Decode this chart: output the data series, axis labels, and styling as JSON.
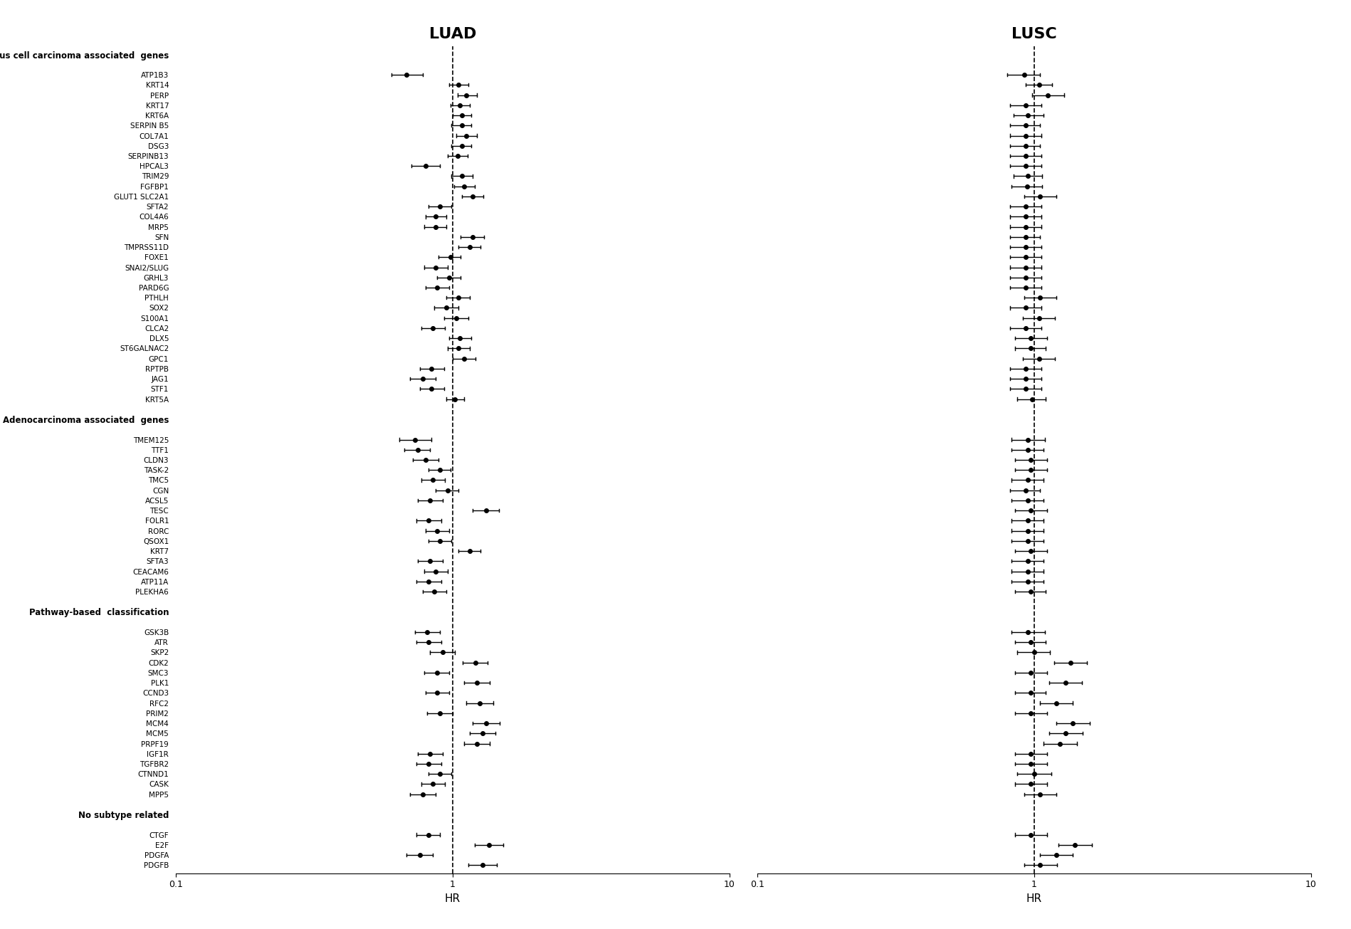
{
  "categories": {
    "Squamous cell carcinoma associated  genes": [
      "ATP1B3",
      "KRT14",
      "PERP",
      "KRT17",
      "KRT6A",
      "SERPIN B5",
      "COL7A1",
      "DSG3",
      "SERPINB13",
      "HPCAL3",
      "TRIM29",
      "FGFBP1",
      "GLUT1 SLC2A1",
      "SFTA2",
      "COL4A6",
      "MRP5",
      "SFN",
      "TMPRSS11D",
      "FOXE1",
      "SNAI2/SLUG",
      "GRHL3",
      "PARD6G",
      "PTHLH",
      "SOX2",
      "S100A1",
      "CLCA2",
      "DLX5",
      "ST6GALNAC2",
      "GPC1",
      "RPTPB",
      "JAG1",
      "STF1",
      "KRT5A"
    ],
    "Adenocarcinoma associated  genes": [
      "TMEM125",
      "TTF1",
      "CLDN3",
      "TASK-2",
      "TMC5",
      "CGN",
      "ACSL5",
      "TESC",
      "FOLR1",
      "RORC",
      "QSOX1",
      "KRT7",
      "SFTA3",
      "CEACAM6",
      "ATP11A",
      "PLEKHA6"
    ],
    "Pathway-based  classification": [
      "GSK3B",
      "ATR",
      "SKP2",
      "CDK2",
      "SMC3",
      "PLK1",
      "CCND3",
      "RFC2",
      "PRIM2",
      "MCM4",
      "MCM5",
      "PRPF19",
      "IGF1R",
      "TGFBR2",
      "CTNND1",
      "CASK",
      "MPP5"
    ],
    "No subtype related": [
      "CTGF",
      "E2F",
      "PDGFA",
      "PDGFB"
    ]
  },
  "luad": {
    "ATP1B3": [
      0.68,
      0.6,
      0.78
    ],
    "KRT14": [
      1.05,
      0.97,
      1.14
    ],
    "PERP": [
      1.12,
      1.04,
      1.22
    ],
    "KRT17": [
      1.06,
      0.98,
      1.15
    ],
    "KRT6A": [
      1.08,
      1.0,
      1.17
    ],
    "SERPIN B5": [
      1.08,
      0.99,
      1.17
    ],
    "COL7A1": [
      1.12,
      1.03,
      1.22
    ],
    "DSG3": [
      1.08,
      0.99,
      1.17
    ],
    "SERPINB13": [
      1.04,
      0.96,
      1.13
    ],
    "HPCAL3": [
      0.8,
      0.71,
      0.9
    ],
    "TRIM29": [
      1.08,
      0.99,
      1.18
    ],
    "FGFBP1": [
      1.1,
      1.01,
      1.2
    ],
    "GLUT1 SLC2A1": [
      1.18,
      1.08,
      1.29
    ],
    "SFTA2": [
      0.9,
      0.82,
      0.99
    ],
    "COL4A6": [
      0.87,
      0.8,
      0.95
    ],
    "MRP5": [
      0.87,
      0.79,
      0.95
    ],
    "SFN": [
      1.18,
      1.07,
      1.3
    ],
    "TMPRSS11D": [
      1.15,
      1.05,
      1.26
    ],
    "FOXE1": [
      0.98,
      0.89,
      1.07
    ],
    "SNAI2/SLUG": [
      0.87,
      0.79,
      0.96
    ],
    "GRHL3": [
      0.97,
      0.88,
      1.07
    ],
    "PARD6G": [
      0.88,
      0.8,
      0.97
    ],
    "PTHLH": [
      1.05,
      0.95,
      1.15
    ],
    "SOX2": [
      0.95,
      0.86,
      1.05
    ],
    "S100A1": [
      1.03,
      0.93,
      1.14
    ],
    "CLCA2": [
      0.85,
      0.77,
      0.94
    ],
    "DLX5": [
      1.06,
      0.97,
      1.17
    ],
    "ST6GALNAC2": [
      1.05,
      0.96,
      1.15
    ],
    "GPC1": [
      1.1,
      1.0,
      1.21
    ],
    "RPTPB": [
      0.84,
      0.76,
      0.93
    ],
    "JAG1": [
      0.78,
      0.7,
      0.87
    ],
    "STF1": [
      0.84,
      0.76,
      0.93
    ],
    "KRT5A": [
      1.02,
      0.95,
      1.1
    ],
    "TMEM125": [
      0.73,
      0.64,
      0.84
    ],
    "TTF1": [
      0.75,
      0.67,
      0.83
    ],
    "CLDN3": [
      0.8,
      0.72,
      0.89
    ],
    "TASK-2": [
      0.9,
      0.82,
      0.98
    ],
    "TMC5": [
      0.85,
      0.77,
      0.94
    ],
    "CGN": [
      0.96,
      0.87,
      1.05
    ],
    "ACSL5": [
      0.83,
      0.75,
      0.92
    ],
    "TESC": [
      1.32,
      1.18,
      1.47
    ],
    "FOLR1": [
      0.82,
      0.74,
      0.91
    ],
    "RORC": [
      0.88,
      0.8,
      0.97
    ],
    "QSOX1": [
      0.9,
      0.82,
      0.99
    ],
    "KRT7": [
      1.15,
      1.05,
      1.26
    ],
    "SFTA3": [
      0.83,
      0.75,
      0.92
    ],
    "CEACAM6": [
      0.87,
      0.79,
      0.96
    ],
    "ATP11A": [
      0.82,
      0.74,
      0.91
    ],
    "PLEKHA6": [
      0.86,
      0.78,
      0.95
    ],
    "GSK3B": [
      0.81,
      0.73,
      0.9
    ],
    "ATR": [
      0.82,
      0.74,
      0.91
    ],
    "SKP2": [
      0.92,
      0.83,
      1.02
    ],
    "CDK2": [
      1.21,
      1.09,
      1.34
    ],
    "SMC3": [
      0.88,
      0.79,
      0.97
    ],
    "PLK1": [
      1.22,
      1.1,
      1.36
    ],
    "CCND3": [
      0.88,
      0.8,
      0.97
    ],
    "RFC2": [
      1.25,
      1.12,
      1.4
    ],
    "PRIM2": [
      0.9,
      0.81,
      1.0
    ],
    "MCM4": [
      1.32,
      1.18,
      1.48
    ],
    "MCM5": [
      1.28,
      1.15,
      1.43
    ],
    "PRPF19": [
      1.22,
      1.1,
      1.36
    ],
    "IGF1R": [
      0.83,
      0.75,
      0.92
    ],
    "TGFBR2": [
      0.82,
      0.74,
      0.91
    ],
    "CTNND1": [
      0.9,
      0.82,
      0.99
    ],
    "CASK": [
      0.85,
      0.77,
      0.94
    ],
    "MPP5": [
      0.78,
      0.7,
      0.87
    ],
    "CTGF": [
      0.82,
      0.74,
      0.9
    ],
    "E2F": [
      1.35,
      1.2,
      1.52
    ],
    "PDGFA": [
      0.76,
      0.68,
      0.85
    ],
    "PDGFB": [
      1.28,
      1.14,
      1.44
    ]
  },
  "lusc": {
    "ATP1B3": [
      0.92,
      0.8,
      1.05
    ],
    "KRT14": [
      1.04,
      0.93,
      1.16
    ],
    "PERP": [
      1.12,
      0.98,
      1.28
    ],
    "KRT17": [
      0.93,
      0.82,
      1.06
    ],
    "KRT6A": [
      0.95,
      0.84,
      1.08
    ],
    "SERPIN B5": [
      0.93,
      0.82,
      1.05
    ],
    "COL7A1": [
      0.93,
      0.82,
      1.06
    ],
    "DSG3": [
      0.93,
      0.82,
      1.05
    ],
    "SERPINB13": [
      0.93,
      0.82,
      1.06
    ],
    "HPCAL3": [
      0.93,
      0.82,
      1.06
    ],
    "TRIM29": [
      0.95,
      0.84,
      1.07
    ],
    "FGFBP1": [
      0.94,
      0.83,
      1.07
    ],
    "GLUT1 SLC2A1": [
      1.05,
      0.92,
      1.2
    ],
    "SFTA2": [
      0.93,
      0.82,
      1.06
    ],
    "COL4A6": [
      0.93,
      0.82,
      1.06
    ],
    "MRP5": [
      0.93,
      0.82,
      1.06
    ],
    "SFN": [
      0.93,
      0.82,
      1.05
    ],
    "TMPRSS11D": [
      0.93,
      0.82,
      1.06
    ],
    "FOXE1": [
      0.93,
      0.82,
      1.06
    ],
    "SNAI2/SLUG": [
      0.93,
      0.82,
      1.06
    ],
    "GRHL3": [
      0.93,
      0.82,
      1.06
    ],
    "PARD6G": [
      0.93,
      0.82,
      1.06
    ],
    "PTHLH": [
      1.05,
      0.92,
      1.2
    ],
    "SOX2": [
      0.93,
      0.82,
      1.06
    ],
    "S100A1": [
      1.04,
      0.91,
      1.19
    ],
    "CLCA2": [
      0.93,
      0.82,
      1.06
    ],
    "DLX5": [
      0.97,
      0.85,
      1.11
    ],
    "ST6GALNAC2": [
      0.97,
      0.85,
      1.1
    ],
    "GPC1": [
      1.04,
      0.91,
      1.19
    ],
    "RPTPB": [
      0.93,
      0.82,
      1.06
    ],
    "JAG1": [
      0.93,
      0.82,
      1.06
    ],
    "STF1": [
      0.93,
      0.82,
      1.06
    ],
    "KRT5A": [
      0.98,
      0.87,
      1.1
    ],
    "TMEM125": [
      0.95,
      0.83,
      1.09
    ],
    "TTF1": [
      0.95,
      0.83,
      1.08
    ],
    "CLDN3": [
      0.97,
      0.85,
      1.11
    ],
    "TASK-2": [
      0.97,
      0.85,
      1.11
    ],
    "TMC5": [
      0.95,
      0.83,
      1.08
    ],
    "CGN": [
      0.93,
      0.82,
      1.05
    ],
    "ACSL5": [
      0.95,
      0.83,
      1.08
    ],
    "TESC": [
      0.97,
      0.85,
      1.11
    ],
    "FOLR1": [
      0.95,
      0.83,
      1.08
    ],
    "RORC": [
      0.95,
      0.83,
      1.08
    ],
    "QSOX1": [
      0.95,
      0.83,
      1.08
    ],
    "KRT7": [
      0.97,
      0.85,
      1.11
    ],
    "SFTA3": [
      0.95,
      0.83,
      1.08
    ],
    "CEACAM6": [
      0.95,
      0.83,
      1.08
    ],
    "ATP11A": [
      0.95,
      0.83,
      1.08
    ],
    "PLEKHA6": [
      0.97,
      0.85,
      1.1
    ],
    "GSK3B": [
      0.95,
      0.83,
      1.09
    ],
    "ATR": [
      0.97,
      0.85,
      1.1
    ],
    "SKP2": [
      1.0,
      0.87,
      1.14
    ],
    "CDK2": [
      1.35,
      1.18,
      1.55
    ],
    "SMC3": [
      0.97,
      0.85,
      1.11
    ],
    "PLK1": [
      1.3,
      1.13,
      1.49
    ],
    "CCND3": [
      0.97,
      0.85,
      1.1
    ],
    "RFC2": [
      1.2,
      1.05,
      1.38
    ],
    "PRIM2": [
      0.97,
      0.85,
      1.11
    ],
    "MCM4": [
      1.38,
      1.2,
      1.59
    ],
    "MCM5": [
      1.3,
      1.13,
      1.5
    ],
    "PRPF19": [
      1.24,
      1.08,
      1.43
    ],
    "IGF1R": [
      0.97,
      0.85,
      1.11
    ],
    "TGFBR2": [
      0.97,
      0.85,
      1.11
    ],
    "CTNND1": [
      1.0,
      0.87,
      1.15
    ],
    "CASK": [
      0.97,
      0.85,
      1.11
    ],
    "MPP5": [
      1.05,
      0.92,
      1.2
    ],
    "CTGF": [
      0.97,
      0.85,
      1.11
    ],
    "E2F": [
      1.4,
      1.22,
      1.62
    ],
    "PDGFA": [
      1.2,
      1.05,
      1.38
    ],
    "PDGFB": [
      1.05,
      0.92,
      1.21
    ]
  },
  "section_labels": [
    "Squamous cell carcinoma associated  genes",
    "Adenocarcinoma associated  genes",
    "Pathway-based  classification",
    "No subtype related"
  ],
  "xlim_log": [
    0.1,
    10
  ],
  "xticks": [
    0.1,
    1,
    10
  ],
  "xticklabels": [
    "0.1",
    "1",
    "10"
  ]
}
